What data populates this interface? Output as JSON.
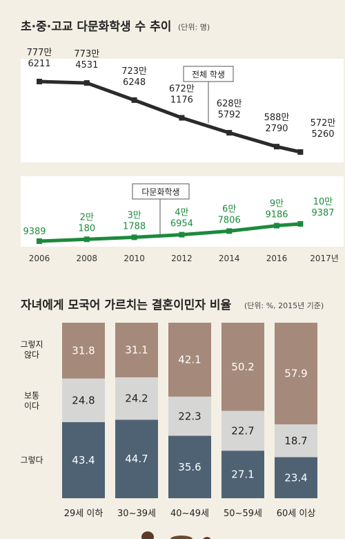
{
  "colors": {
    "background": "#f3efe4",
    "line_total": "#2b2b2b",
    "line_multicultural": "#1c8a3c",
    "stack_yes": "#4f6274",
    "stack_neutral": "#d6d6d4",
    "stack_no": "#a5897a"
  },
  "chart_data": [
    {
      "type": "line",
      "title": "초·중·고교 다문화학생 수 추이",
      "unit": "(단위: 명)",
      "x": [
        2006,
        2008,
        2010,
        2012,
        2014,
        2016,
        2017
      ],
      "x_tick_labels": [
        "2006",
        "2008",
        "2010",
        "2012",
        "2014",
        "2016",
        "2017년"
      ],
      "series": [
        {
          "name": "전체 학생",
          "values": [
            7776211,
            7734531,
            7236248,
            6721176,
            6285792,
            5882790,
            5725260
          ],
          "labels": [
            [
              "777만",
              "6211"
            ],
            [
              "773만",
              "4531"
            ],
            [
              "723만",
              "6248"
            ],
            [
              "672만",
              "1176"
            ],
            [
              "628만",
              "5792"
            ],
            [
              "588만",
              "2790"
            ],
            [
              "572만",
              "5260"
            ]
          ]
        },
        {
          "name": "다문화학생",
          "values": [
            9389,
            20180,
            31788,
            46954,
            67806,
            99186,
            109387
          ],
          "labels": [
            [
              "",
              "9389"
            ],
            [
              "2만",
              "180"
            ],
            [
              "3만",
              "1788"
            ],
            [
              "4만",
              "6954"
            ],
            [
              "6만",
              "7806"
            ],
            [
              "9만",
              "9186"
            ],
            [
              "10만",
              "9387"
            ]
          ]
        }
      ]
    },
    {
      "type": "bar",
      "stacked": true,
      "title": "자녀에게 모국어 가르치는 결혼이민자 비율",
      "unit": "(단위: %, 2015년 기준)",
      "categories": [
        "29세 이하",
        "30~39세",
        "40~49세",
        "50~59세",
        "60세 이상"
      ],
      "series": [
        {
          "name": "그렇다",
          "values": [
            43.4,
            44.7,
            35.6,
            27.1,
            23.4
          ]
        },
        {
          "name": "보통이다",
          "label_lines": [
            "보통",
            "이다"
          ],
          "values": [
            24.8,
            24.2,
            22.3,
            22.7,
            18.7
          ]
        },
        {
          "name": "그렇지 않다",
          "label_lines": [
            "그렇지",
            "않다"
          ],
          "values": [
            31.8,
            31.1,
            42.1,
            50.2,
            57.9
          ]
        }
      ],
      "ylim": [
        0,
        100
      ]
    }
  ]
}
